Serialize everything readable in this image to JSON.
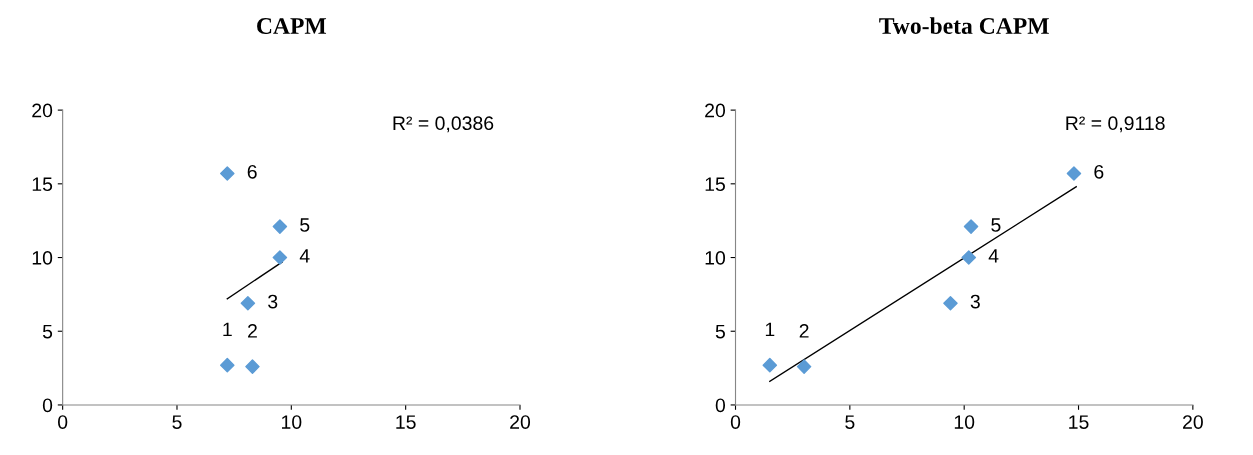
{
  "chart_data": [
    {
      "type": "scatter",
      "title": "CAPM",
      "marker": "diamond",
      "grid": false,
      "legend": false,
      "xlim": [
        0,
        20
      ],
      "xticks": [
        0,
        5,
        10,
        15,
        20
      ],
      "ylim": [
        0,
        20
      ],
      "yticks": [
        0,
        5,
        10,
        15,
        20
      ],
      "series": [
        {
          "color": "#5b9bd5",
          "x": [
            7.2,
            8.3,
            8.1,
            9.5,
            9.5,
            7.2
          ],
          "values": [
            2.7,
            2.6,
            6.9,
            10.0,
            12.1,
            15.7
          ]
        },
        {
          "type": "line",
          "color": "#000000",
          "marker": "none",
          "x": [
            7.2,
            9.6
          ],
          "values": [
            7.2,
            9.7
          ]
        }
      ],
      "annotations": [
        "R² = 0,0386",
        {
          "text": "1",
          "x": 7.2,
          "y": 2.7
        },
        {
          "text": "2",
          "x": 8.3,
          "y": 2.6
        },
        {
          "text": "3",
          "x": 8.1,
          "y": 6.9
        },
        {
          "text": "4",
          "x": 9.5,
          "y": 10.0
        },
        {
          "text": "5",
          "x": 9.5,
          "y": 12.1
        },
        {
          "text": "6",
          "x": 7.2,
          "y": 15.7
        }
      ]
    },
    {
      "type": "scatter",
      "title": "Two-beta CAPM",
      "marker": "diamond",
      "grid": false,
      "legend": false,
      "xlim": [
        0,
        20
      ],
      "xticks": [
        0,
        5,
        10,
        15,
        20
      ],
      "ylim": [
        0,
        20
      ],
      "yticks": [
        0,
        5,
        10,
        15,
        20
      ],
      "series": [
        {
          "color": "#5b9bd5",
          "x": [
            1.5,
            3.0,
            9.4,
            10.2,
            10.3,
            14.8
          ],
          "values": [
            2.7,
            2.6,
            6.9,
            10.0,
            12.1,
            15.7
          ]
        },
        {
          "type": "line",
          "color": "#000000",
          "marker": "none",
          "x": [
            1.5,
            14.9
          ],
          "values": [
            1.6,
            14.8
          ]
        }
      ],
      "annotations": [
        "R² = 0,9118",
        {
          "text": "1",
          "x": 1.5,
          "y": 2.7
        },
        {
          "text": "2",
          "x": 3.0,
          "y": 2.6
        },
        {
          "text": "3",
          "x": 9.4,
          "y": 6.9
        },
        {
          "text": "4",
          "x": 10.2,
          "y": 10.0
        },
        {
          "text": "5",
          "x": 10.3,
          "y": 12.1
        },
        {
          "text": "6",
          "x": 14.8,
          "y": 15.7
        }
      ]
    }
  ]
}
